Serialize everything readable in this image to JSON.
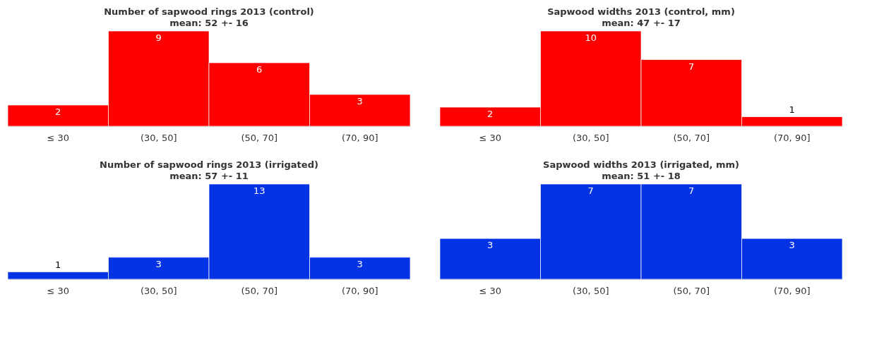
{
  "chart_data": [
    {
      "type": "bar",
      "title": "Number of sapwood rings 2013 (control)",
      "subtitle": "mean: 52 +- 16",
      "categories": [
        "≤ 30",
        "(30, 50]",
        "(50, 70]",
        "(70, 90]"
      ],
      "values": [
        2,
        9,
        6,
        3
      ],
      "color": "#ff0000",
      "data_labels": true
    },
    {
      "type": "bar",
      "title": "Sapwood widths 2013 (control, mm)",
      "subtitle": "mean: 47 +- 17",
      "categories": [
        "≤ 30",
        "(30, 50]",
        "(50, 70]",
        "(70, 90]"
      ],
      "values": [
        2,
        10,
        7,
        1
      ],
      "color": "#ff0000",
      "data_labels": true
    },
    {
      "type": "bar",
      "title": "Number of sapwood rings 2013 (irrigated)",
      "subtitle": "mean: 57 +- 11",
      "categories": [
        "≤ 30",
        "(30, 50]",
        "(50, 70]",
        "(70, 90]"
      ],
      "values": [
        1,
        3,
        13,
        3
      ],
      "color": "#0433e6",
      "data_labels": true
    },
    {
      "type": "bar",
      "title": "Sapwood widths 2013 (irrigated, mm)",
      "subtitle": "mean: 51 +- 18",
      "categories": [
        "≤ 30",
        "(30, 50]",
        "(50, 70]",
        "(70, 90]"
      ],
      "values": [
        3,
        7,
        7,
        3
      ],
      "color": "#0433e6",
      "data_labels": true
    }
  ]
}
